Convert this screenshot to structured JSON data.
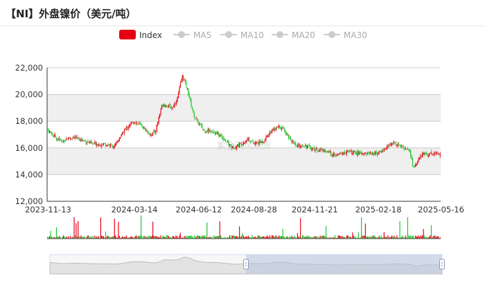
{
  "title": "【NI】外盘镍价（美元/吨）",
  "colors": {
    "up": "#e60012",
    "down": "#22c32e",
    "legend_inactive": "#cccccc",
    "grid_band": "#efefef"
  },
  "legend": [
    {
      "label": "Index",
      "active": true
    },
    {
      "label": "MA5",
      "active": false
    },
    {
      "label": "MA10",
      "active": false
    },
    {
      "label": "MA20",
      "active": false
    },
    {
      "label": "MA30",
      "active": false
    }
  ],
  "watermark": "紫金天风期货",
  "chart_data": {
    "type": "candlestick",
    "series_name": "Index",
    "ylim": [
      12000,
      22000
    ],
    "y_ticks": [
      "12,000",
      "14,000",
      "16,000",
      "18,000",
      "20,000",
      "22,000"
    ],
    "y_tick_values": [
      12000,
      14000,
      16000,
      18000,
      20000,
      22000
    ],
    "x_ticks": [
      "2023-11-13",
      "2024-03-14",
      "2024-06-12",
      "2024-08-28",
      "2024-11-21",
      "2025-02-18",
      "2025-05-16"
    ],
    "x_range": [
      "2023-11-13",
      "2025-05-16"
    ],
    "grid": true,
    "legend_position": "top-center",
    "data_zoom_range": [
      0.5,
      1.0
    ],
    "close_path": [
      [
        "2023-11-13",
        17400
      ],
      [
        "2023-11-20",
        17000
      ],
      [
        "2023-11-27",
        16700
      ],
      [
        "2023-12-04",
        16500
      ],
      [
        "2023-12-11",
        16700
      ],
      [
        "2023-12-18",
        16800
      ],
      [
        "2024-01-01",
        16600
      ],
      [
        "2024-01-15",
        16300
      ],
      [
        "2024-02-01",
        16300
      ],
      [
        "2024-02-15",
        16100
      ],
      [
        "2024-03-01",
        17400
      ],
      [
        "2024-03-14",
        18000
      ],
      [
        "2024-03-25",
        17600
      ],
      [
        "2024-04-05",
        17000
      ],
      [
        "2024-04-12",
        17200
      ],
      [
        "2024-04-22",
        19300
      ],
      [
        "2024-05-06",
        19000
      ],
      [
        "2024-05-13",
        19700
      ],
      [
        "2024-05-20",
        21400
      ],
      [
        "2024-05-27",
        20400
      ],
      [
        "2024-06-05",
        18400
      ],
      [
        "2024-06-12",
        17800
      ],
      [
        "2024-06-20",
        17300
      ],
      [
        "2024-07-01",
        17300
      ],
      [
        "2024-07-15",
        16800
      ],
      [
        "2024-07-29",
        16000
      ],
      [
        "2024-08-10",
        16300
      ],
      [
        "2024-08-20",
        16700
      ],
      [
        "2024-08-28",
        16300
      ],
      [
        "2024-09-10",
        16500
      ],
      [
        "2024-09-20",
        17200
      ],
      [
        "2024-10-03",
        17600
      ],
      [
        "2024-10-10",
        17300
      ],
      [
        "2024-10-25",
        16100
      ],
      [
        "2024-11-05",
        16200
      ],
      [
        "2024-11-21",
        15900
      ],
      [
        "2024-12-05",
        15800
      ],
      [
        "2024-12-19",
        15400
      ],
      [
        "2025-01-05",
        15700
      ],
      [
        "2025-01-20",
        15600
      ],
      [
        "2025-02-05",
        15600
      ],
      [
        "2025-02-18",
        15600
      ],
      [
        "2025-03-01",
        16000
      ],
      [
        "2025-03-10",
        16400
      ],
      [
        "2025-03-25",
        16000
      ],
      [
        "2025-04-02",
        15900
      ],
      [
        "2025-04-08",
        14500
      ],
      [
        "2025-04-20",
        15500
      ],
      [
        "2025-05-05",
        15600
      ],
      [
        "2025-05-16",
        15600
      ]
    ]
  }
}
